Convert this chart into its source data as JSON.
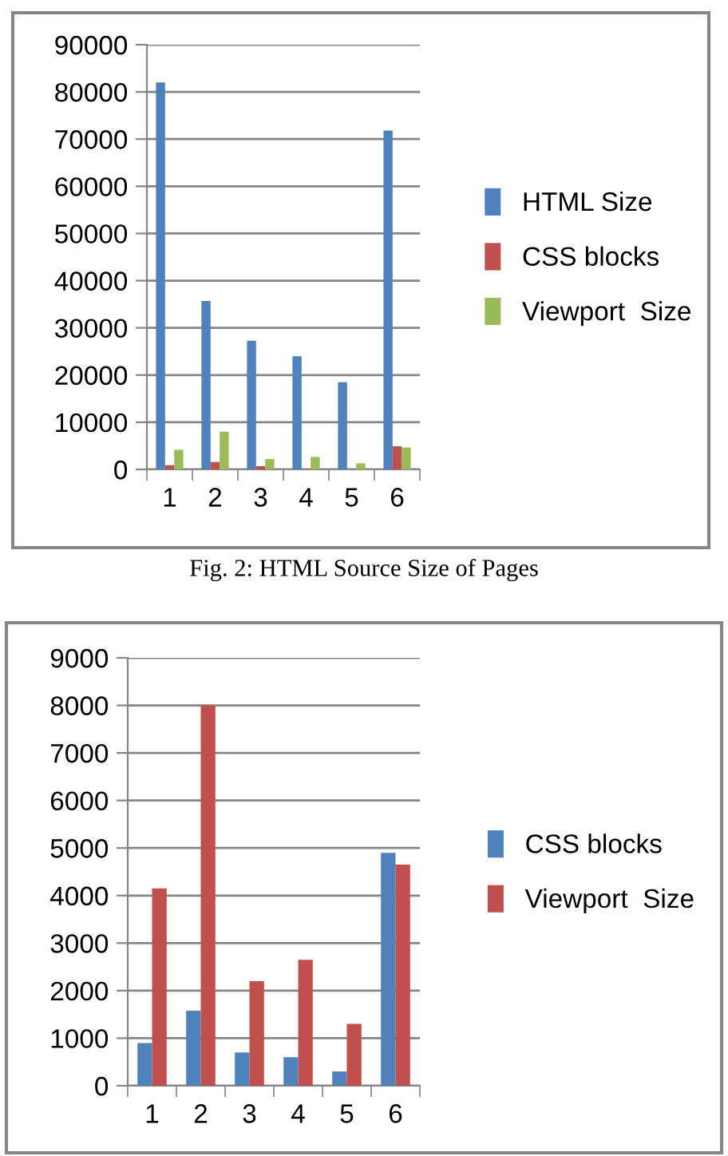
{
  "chart_data": [
    {
      "type": "bar",
      "categories": [
        "1",
        "2",
        "3",
        "4",
        "5",
        "6"
      ],
      "series": [
        {
          "name": "HTML Size",
          "color": "#4f81bd",
          "values": [
            82000,
            35700,
            27300,
            24000,
            18500,
            71800
          ]
        },
        {
          "name": "CSS blocks",
          "color": "#c0504d",
          "values": [
            900,
            1580,
            700,
            null,
            null,
            4900
          ]
        },
        {
          "name": "Viewport  Size",
          "color": "#9bbb59",
          "values": [
            4150,
            8000,
            2200,
            2650,
            1300,
            4650
          ]
        }
      ],
      "ylim": [
        0,
        90000
      ],
      "yticks": [
        0,
        10000,
        20000,
        30000,
        40000,
        50000,
        60000,
        70000,
        80000,
        90000
      ],
      "grid": "y",
      "legend": "right",
      "annotations": [
        "Fig. 2: HTML Source Size of Pages"
      ]
    },
    {
      "type": "bar",
      "categories": [
        "1",
        "2",
        "3",
        "4",
        "5",
        "6"
      ],
      "series": [
        {
          "name": "CSS blocks",
          "color": "#4f81bd",
          "values": [
            900,
            1580,
            700,
            600,
            300,
            4900
          ]
        },
        {
          "name": "Viewport  Size",
          "color": "#c0504d",
          "values": [
            4150,
            8000,
            2200,
            2650,
            1300,
            4650
          ]
        }
      ],
      "ylim": [
        0,
        9000
      ],
      "yticks": [
        0,
        1000,
        2000,
        3000,
        4000,
        5000,
        6000,
        7000,
        8000,
        9000
      ],
      "grid": "y",
      "legend": "right"
    }
  ]
}
